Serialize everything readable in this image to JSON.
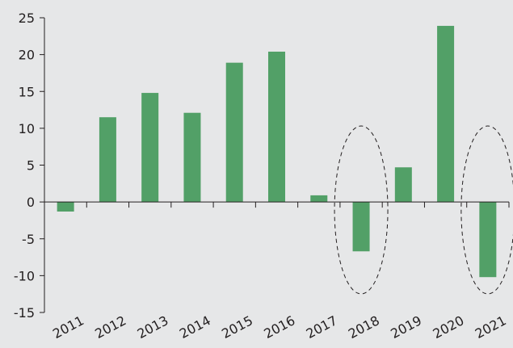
{
  "chart_data": {
    "type": "bar",
    "title": "",
    "xlabel": "",
    "ylabel": "",
    "categories": [
      "2011",
      "2012",
      "2013",
      "2014",
      "2015",
      "2016",
      "2017",
      "2018",
      "2019",
      "2020",
      "2021"
    ],
    "values": [
      -1.3,
      11.5,
      14.8,
      12.1,
      18.9,
      20.4,
      0.9,
      -6.7,
      4.7,
      23.9,
      -10.2
    ],
    "ylim": [
      -15,
      25
    ],
    "yticks": [
      "25",
      "20",
      "15",
      "10",
      "5",
      "0",
      "-5",
      "-10",
      "-15"
    ],
    "grid": false,
    "legend": "none",
    "highlighted_categories": [
      "2018",
      "2021"
    ],
    "colors": {
      "bar": "#52a067",
      "axis": "#231f20",
      "highlight_ellipse": "#231f20",
      "background": "#e6e7e8"
    }
  }
}
